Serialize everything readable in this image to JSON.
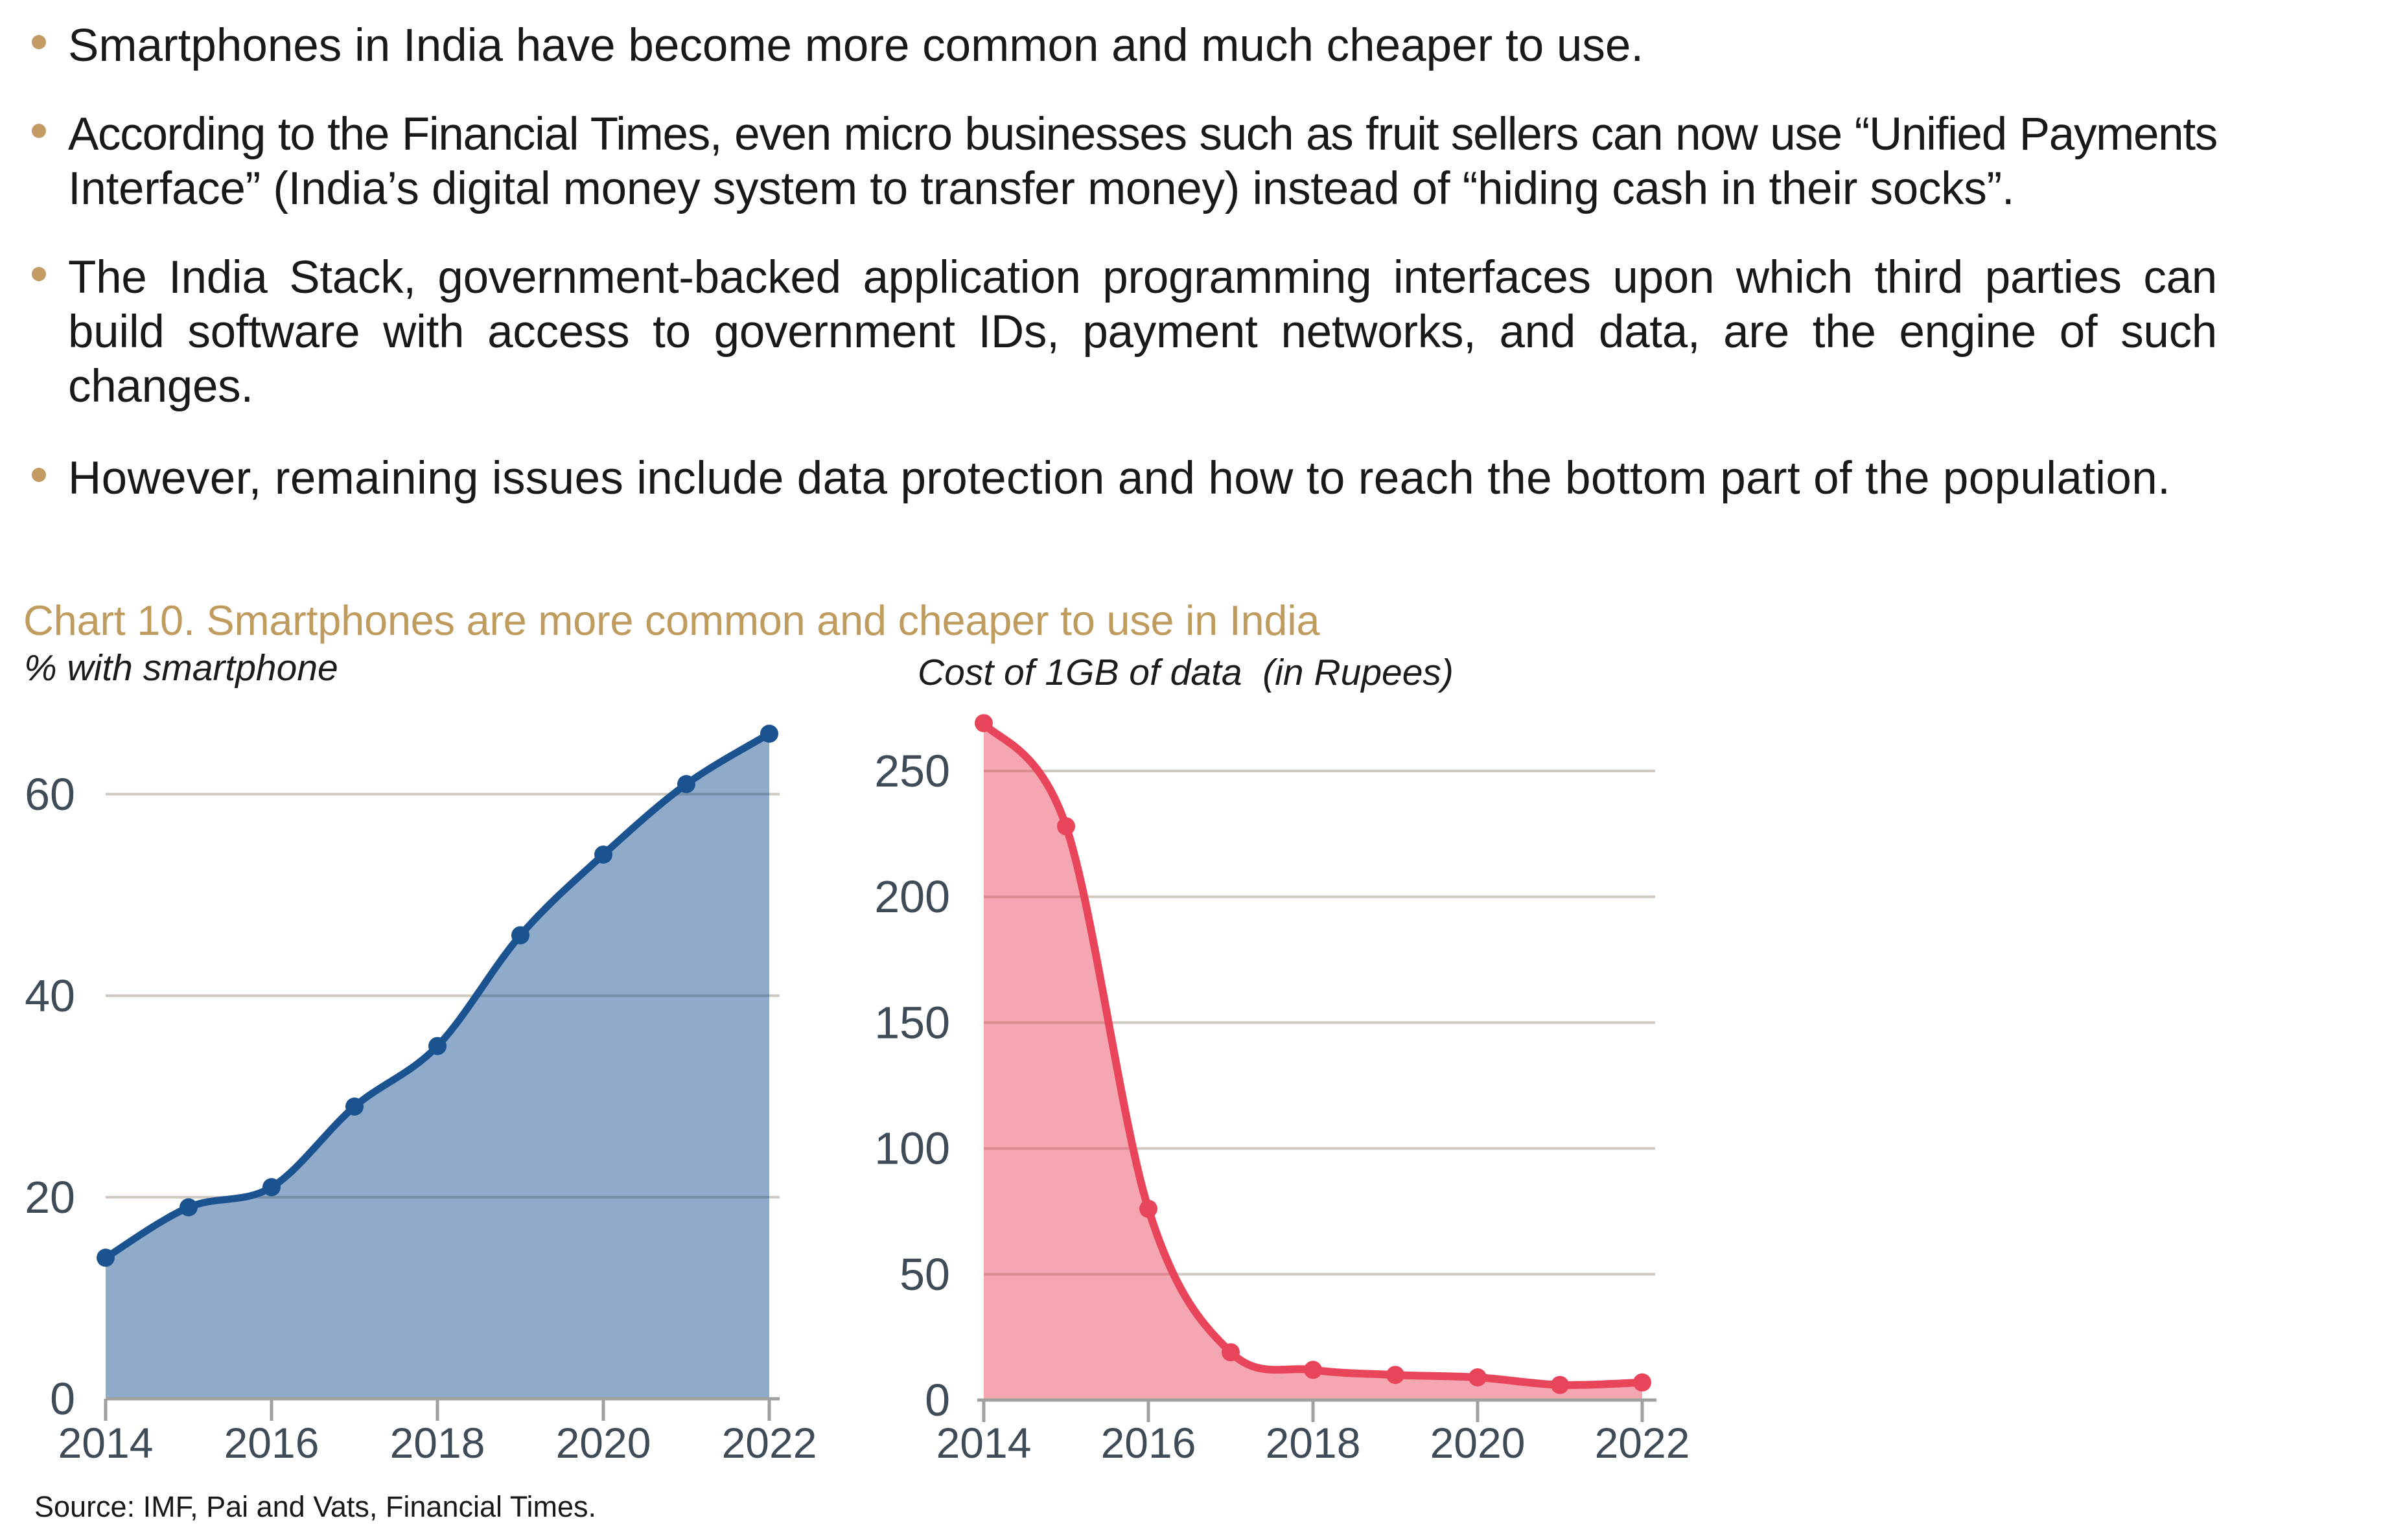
{
  "bullets": [
    {
      "text": "Smartphones in India have become more common and much cheaper to use.",
      "lines": [
        "Smartphones in India have become more common and much cheaper to use."
      ]
    },
    {
      "text": "According to the Financial Times, even micro businesses such as fruit sellers can now use “Unified Payments Interface” (India’s digital money system to transfer money) instead of “hiding cash in their socks”.",
      "lines": [
        "According to the Financial Times, even micro businesses such as fruit sellers can now use “Unified Payments",
        "Interface” (India’s digital money system to transfer money) instead of “hiding cash in their socks”."
      ]
    },
    {
      "text": "The India Stack, government-backed application programming interfaces upon which third parties can build software with access to government IDs, payment networks, and data, are the engine of such changes.",
      "lines": [
        "The India Stack, government-backed application programming interfaces upon which third parties can",
        "build software with access to government IDs, payment networks, and data, are the engine of such",
        "changes."
      ]
    },
    {
      "text": "However, remaining issues include data protection and how to reach the bottom part of the population.",
      "lines": [
        "However, remaining issues include data protection and how to reach the bottom part of the population."
      ]
    }
  ],
  "chart_section": {
    "title": "Chart 10. Smartphones are more common and cheaper to use in India",
    "left_subtitle": "% with smartphone",
    "right_subtitle": "Cost of 1GB of data  (in Rupees)",
    "source": "Source: IMF, Pai and Vats, Financial Times."
  },
  "colors": {
    "accent_gold": "#bf9b5e",
    "bullet_dot": "#c49b64",
    "text": "#191919",
    "left_line": "#1b5390",
    "left_fill": "rgba(27,83,144,0.49)",
    "right_line": "#e8455a",
    "right_fill": "rgba(232,69,90,0.47)",
    "gridline": "#cfc9c1",
    "axis_line": "#a0a09e",
    "axis_label": "#3f4b57"
  },
  "chart_data": [
    {
      "type": "area",
      "title": "% with smartphone",
      "series_name": "% of population with a smartphone",
      "x": [
        2014,
        2015,
        2016,
        2017,
        2018,
        2019,
        2020,
        2021,
        2022
      ],
      "values": [
        14,
        19,
        21,
        29,
        35,
        46,
        54,
        61,
        66
      ],
      "xlabel": "",
      "ylabel": "% with smartphone",
      "ylim": [
        0,
        70
      ],
      "yticks": [
        0,
        20,
        40,
        60
      ],
      "xticks": [
        2014,
        2016,
        2018,
        2020,
        2022
      ],
      "grid": true,
      "legend": "none",
      "smooth": true
    },
    {
      "type": "area",
      "title": "Cost of 1GB of data  (in Rupees)",
      "series_name": "Cost of 1GB of data in Rupees",
      "x": [
        2014,
        2015,
        2016,
        2017,
        2018,
        2019,
        2020,
        2021,
        2022
      ],
      "values": [
        269,
        228,
        76,
        19,
        12,
        10,
        9,
        6,
        7
      ],
      "xlabel": "",
      "ylabel": "Cost of 1GB of data (in Rupees)",
      "ylim": [
        0,
        270
      ],
      "yticks": [
        0,
        50,
        100,
        150,
        200,
        250
      ],
      "xticks": [
        2014,
        2016,
        2018,
        2020,
        2022
      ],
      "grid": true,
      "legend": "none",
      "smooth": true
    }
  ]
}
